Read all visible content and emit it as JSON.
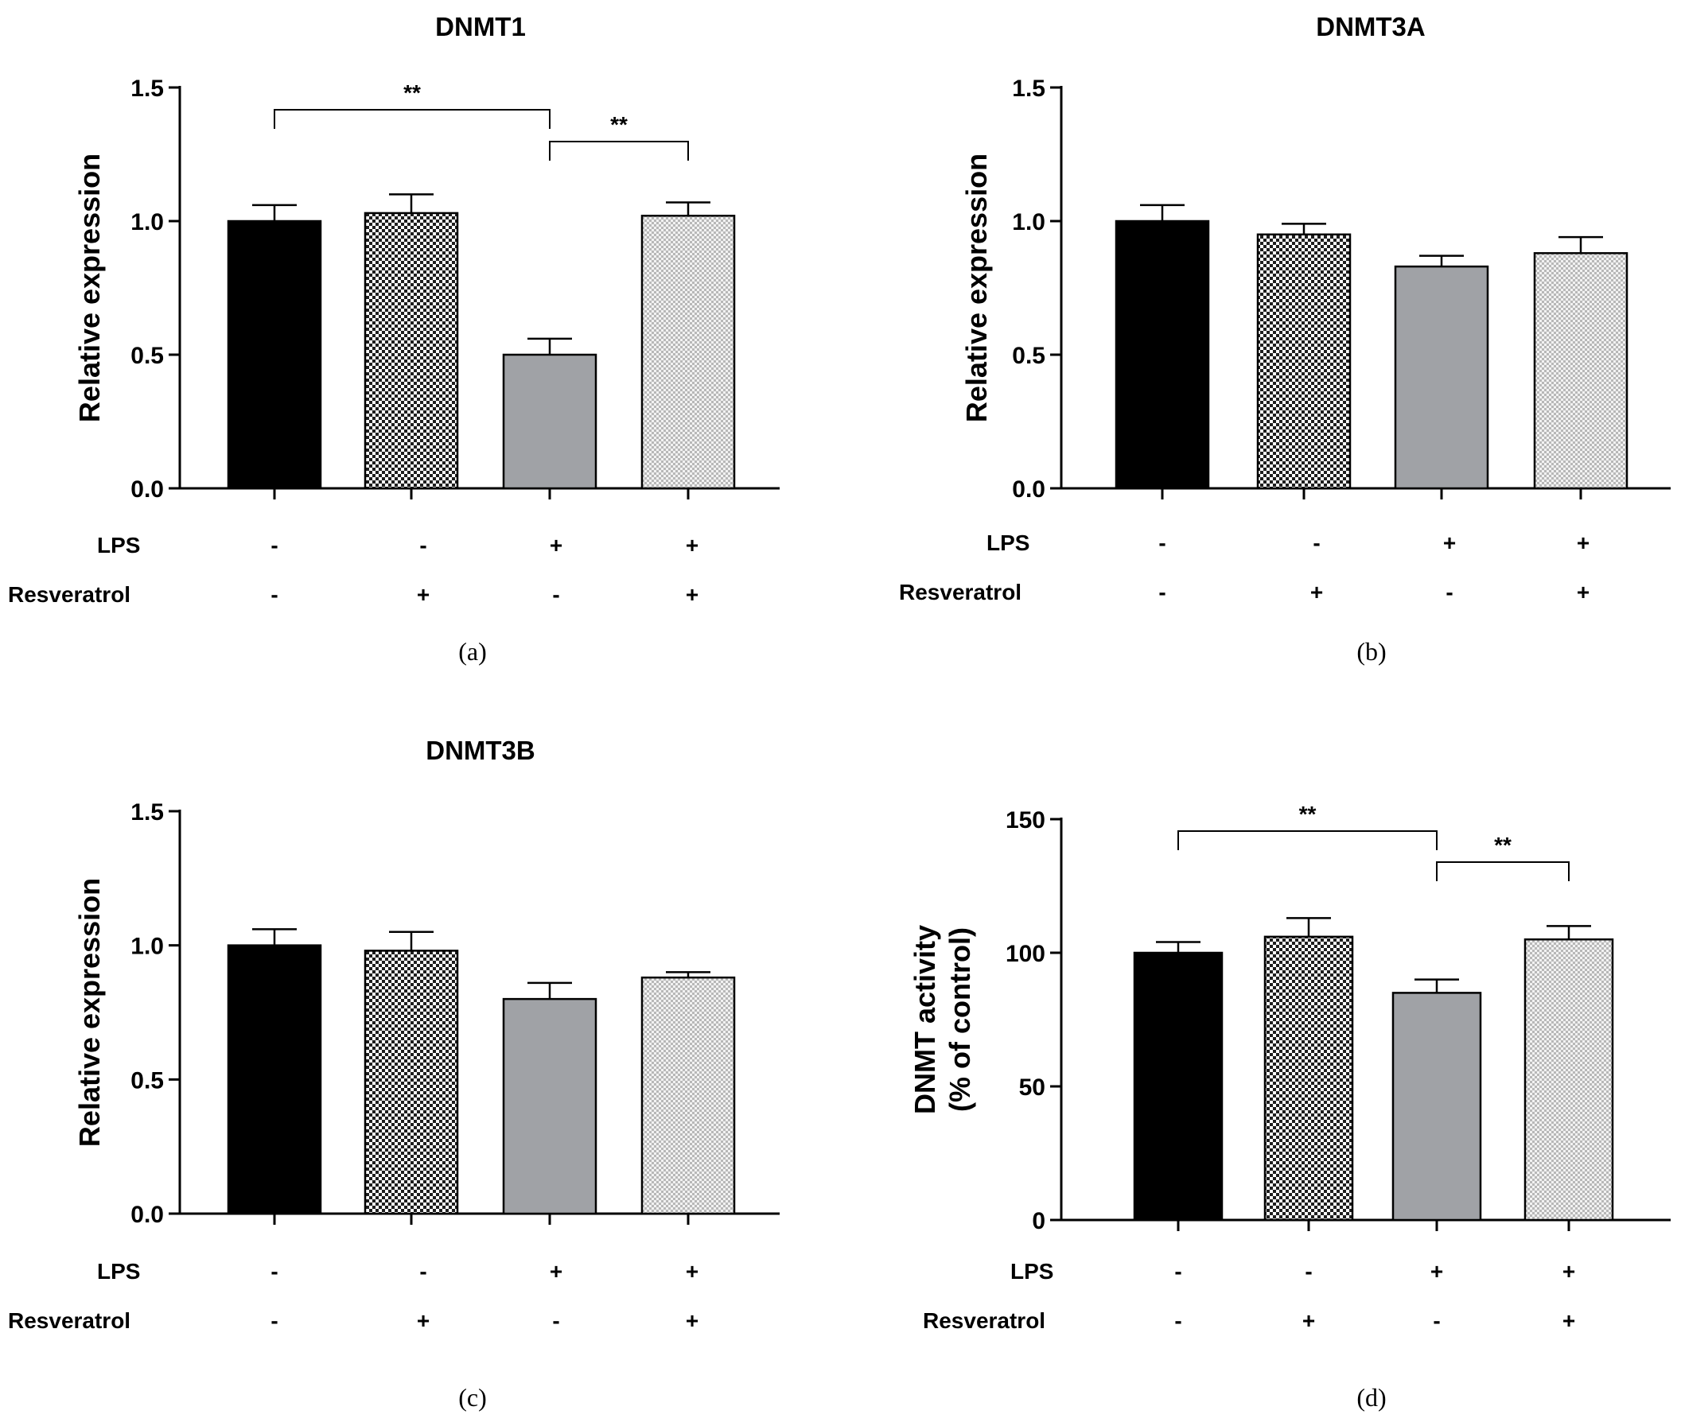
{
  "colors": {
    "black_bar": "#000000",
    "resveratrol_bar": "checker-dark",
    "lps_bar": "#a0a2a6",
    "lps_resveratrol_bar": "checker-light",
    "axis": "#000000"
  },
  "conditions": {
    "row_labels": [
      "LPS",
      "Resveratrol"
    ],
    "lps": [
      "-",
      "-",
      "+",
      "+"
    ],
    "resveratrol": [
      "-",
      "+",
      "-",
      "+"
    ]
  },
  "chart_data": [
    {
      "type": "bar",
      "panel": "(a)",
      "title": "DNMT1",
      "ylabel": "Relative expression",
      "ylim": [
        0,
        1.5
      ],
      "yticks": [
        "0.0",
        "0.5",
        "1.0",
        "1.5"
      ],
      "categories": [
        "1",
        "2",
        "3",
        "4"
      ],
      "values": [
        1.0,
        1.03,
        0.5,
        1.02
      ],
      "errors": [
        0.06,
        0.07,
        0.06,
        0.05
      ],
      "significance": [
        {
          "from": 0,
          "to": 2,
          "label": "**"
        },
        {
          "from": 2,
          "to": 3,
          "label": "**"
        }
      ]
    },
    {
      "type": "bar",
      "panel": "(b)",
      "title": "DNMT3A",
      "ylabel": "Relative expression",
      "ylim": [
        0,
        1.5
      ],
      "yticks": [
        "0.0",
        "0.5",
        "1.0",
        "1.5"
      ],
      "categories": [
        "1",
        "2",
        "3",
        "4"
      ],
      "values": [
        1.0,
        0.95,
        0.83,
        0.88
      ],
      "errors": [
        0.06,
        0.04,
        0.04,
        0.06
      ],
      "significance": []
    },
    {
      "type": "bar",
      "panel": "(c)",
      "title": "DNMT3B",
      "ylabel": "Relative expression",
      "ylim": [
        0,
        1.5
      ],
      "yticks": [
        "0.0",
        "0.5",
        "1.0",
        "1.5"
      ],
      "categories": [
        "1",
        "2",
        "3",
        "4"
      ],
      "values": [
        1.0,
        0.98,
        0.8,
        0.88
      ],
      "errors": [
        0.06,
        0.07,
        0.06,
        0.02
      ],
      "significance": []
    },
    {
      "type": "bar",
      "panel": "(d)",
      "title": "",
      "ylabel": "DNMT activity (% of control)",
      "ylabel_lines": [
        "DNMT activity",
        "(% of control)"
      ],
      "ylim": [
        0,
        150
      ],
      "yticks": [
        "0",
        "50",
        "100",
        "150"
      ],
      "categories": [
        "1",
        "2",
        "3",
        "4"
      ],
      "values": [
        100,
        106,
        85,
        105
      ],
      "errors": [
        4,
        7,
        5,
        5
      ],
      "significance": [
        {
          "from": 0,
          "to": 2,
          "label": "**"
        },
        {
          "from": 2,
          "to": 3,
          "label": "**"
        }
      ]
    }
  ]
}
